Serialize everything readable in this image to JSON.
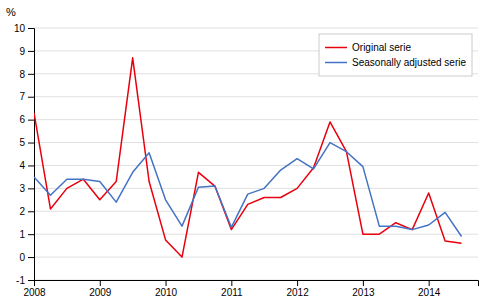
{
  "chart_data": {
    "type": "line",
    "ylabel": "%",
    "x": [
      2008.0,
      2008.25,
      2008.5,
      2008.75,
      2009.0,
      2009.25,
      2009.5,
      2009.75,
      2010.0,
      2010.25,
      2010.5,
      2010.75,
      2011.0,
      2011.25,
      2011.5,
      2011.75,
      2012.0,
      2012.25,
      2012.5,
      2012.75,
      2013.0,
      2013.25,
      2013.5,
      2013.75,
      2014.0,
      2014.25,
      2014.5
    ],
    "series": [
      {
        "name": "Original serie",
        "color": "#e8000d",
        "values": [
          6.3,
          2.1,
          3.0,
          3.4,
          2.5,
          3.3,
          8.7,
          3.3,
          0.75,
          0.0,
          3.7,
          3.1,
          1.2,
          2.3,
          2.6,
          2.6,
          3.0,
          3.9,
          5.9,
          4.6,
          1.0,
          1.0,
          1.5,
          1.2,
          2.8,
          0.7,
          0.6
        ]
      },
      {
        "name": "Seasonally adjusted serie",
        "color": "#4472c4",
        "values": [
          3.5,
          2.7,
          3.4,
          3.4,
          3.3,
          2.4,
          3.7,
          4.55,
          2.5,
          1.35,
          3.05,
          3.1,
          1.3,
          2.75,
          3.0,
          3.8,
          4.3,
          3.85,
          5.0,
          4.6,
          3.95,
          1.35,
          1.35,
          1.2,
          1.4,
          1.95,
          0.9
        ]
      }
    ],
    "xlim": [
      2008.0,
      2014.75
    ],
    "xticks": [
      2008,
      2009,
      2010,
      2011,
      2012,
      2013,
      2014
    ],
    "ylim": [
      -1,
      10
    ],
    "yticks": [
      -1,
      0,
      1,
      2,
      3,
      4,
      5,
      6,
      7,
      8,
      9,
      10
    ],
    "grid": true,
    "legend": "upper right"
  }
}
